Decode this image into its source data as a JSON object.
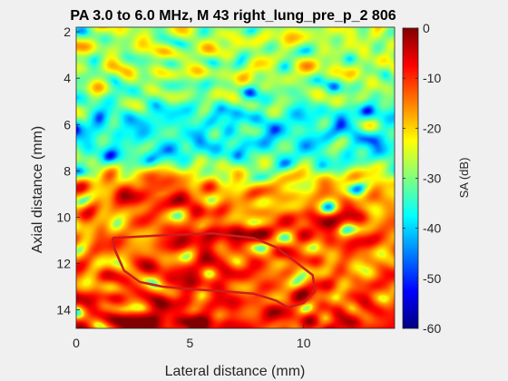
{
  "chart_data": {
    "type": "heatmap",
    "title": "PA 3.0 to 6.0 MHz, M 43   right_lung_pre_p_2 806",
    "xlabel": "Lateral distance (mm)",
    "ylabel": "Axial distance (mm)",
    "xlim": [
      0,
      14
    ],
    "ylim": [
      1.8,
      14.8
    ],
    "y_reversed": true,
    "xticks": [
      0,
      5,
      10
    ],
    "yticks": [
      2,
      4,
      6,
      8,
      10,
      12,
      14
    ],
    "colormap": "jet",
    "colorbar": {
      "label": "SA (dB)",
      "range": [
        -60,
        0
      ],
      "ticks": [
        0,
        -10,
        -20,
        -30,
        -40,
        -50,
        -60
      ]
    },
    "roi_outline": {
      "color": "#d01c1c",
      "points": [
        [
          1.6,
          10.9
        ],
        [
          3.5,
          10.8
        ],
        [
          6.0,
          10.7
        ],
        [
          7.8,
          10.9
        ],
        [
          8.8,
          11.3
        ],
        [
          9.6,
          11.9
        ],
        [
          10.4,
          12.5
        ],
        [
          10.5,
          13.2
        ],
        [
          10.0,
          13.7
        ],
        [
          9.3,
          13.9
        ],
        [
          8.8,
          13.6
        ],
        [
          7.8,
          13.3
        ],
        [
          6.5,
          13.2
        ],
        [
          5.0,
          13.1
        ],
        [
          3.8,
          13.0
        ],
        [
          2.8,
          12.8
        ],
        [
          2.1,
          12.3
        ],
        [
          1.7,
          11.4
        ],
        [
          1.6,
          10.9
        ]
      ]
    },
    "field_model": {
      "bands": [
        {
          "y_center": 3.0,
          "y_halfwidth": 2.0,
          "level_db": -27
        },
        {
          "y_center": 6.5,
          "y_halfwidth": 1.5,
          "level_db": -38
        },
        {
          "y_center": 9.2,
          "y_halfwidth": 1.3,
          "level_db": -18
        },
        {
          "y_center": 11.8,
          "y_halfwidth": 1.4,
          "level_db": -15
        },
        {
          "y_center": 14.2,
          "y_halfwidth": 0.8,
          "level_db": -10
        }
      ],
      "hot_spots": [
        {
          "x": 3.5,
          "y": 9.0,
          "level_db": -6
        },
        {
          "x": 6.0,
          "y": 10.8,
          "level_db": -5
        },
        {
          "x": 11.0,
          "y": 10.4,
          "level_db": -8
        },
        {
          "x": 5.5,
          "y": 12.5,
          "level_db": -7
        },
        {
          "x": 4.0,
          "y": 14.6,
          "level_db": -3
        }
      ]
    }
  },
  "colors": {
    "axes_background": "#ffffff",
    "figure_background": "#f0f0f0",
    "roi_line": "#d01c1c"
  }
}
